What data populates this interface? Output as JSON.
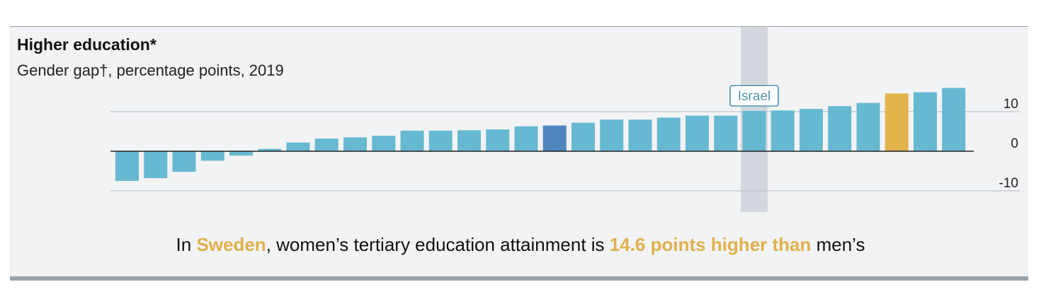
{
  "header": {
    "title": "Higher education*",
    "subtitle": "Gender gap†, percentage points, 2019"
  },
  "caption": {
    "prefix": "In ",
    "country": "Sweden",
    "middle": ", women’s tertiary education attainment is ",
    "figure": "14.6 points higher than",
    "suffix": " men’s"
  },
  "colors": {
    "bar": "#66b9d1",
    "highlight_selected": "#e2b24b",
    "highlight_israel": "#4f85bf",
    "israel_band": "#d3d8df",
    "grid": "#bfc4ca",
    "zero_line": "#222222",
    "label_box": "#4e96a8"
  },
  "chart_data": {
    "type": "bar",
    "title": "Higher education*",
    "subtitle": "Gender gap†, percentage points, 2019",
    "ylim": [
      -15,
      15
    ],
    "y_ticks": [
      10,
      0,
      -10
    ],
    "y_tick_labels": [
      "10",
      "0",
      "-10"
    ],
    "grid": true,
    "values": [
      -7.5,
      -6.8,
      -5.2,
      -2.4,
      -1.1,
      0.6,
      2.2,
      3.2,
      3.5,
      3.9,
      5.2,
      5.2,
      5.3,
      5.5,
      6.3,
      6.5,
      7.2,
      8.0,
      8.0,
      8.5,
      9.0,
      9.0,
      10.2,
      10.3,
      10.7,
      11.4,
      12.2,
      14.6,
      14.9,
      16.0
    ],
    "highlights": {
      "selected_index": 27,
      "selected_label": "Sweden",
      "dark_index": 15,
      "band_index": 22,
      "band_label": "Israel"
    }
  }
}
